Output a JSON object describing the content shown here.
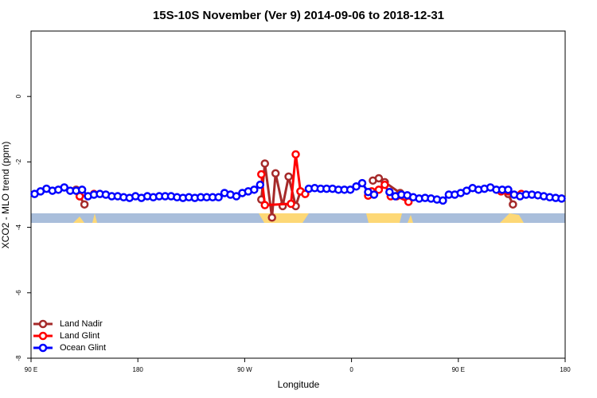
{
  "chart_data": {
    "type": "line",
    "title": "15S-10S November (Ver 9)   2014-09-06 to 2018-12-31",
    "x_label": "Longitude",
    "y_label": "XCO2 - MLO trend (ppm)",
    "xlim": [
      90,
      540
    ],
    "ylim": [
      -8,
      2
    ],
    "xticks": [
      {
        "value": 90,
        "label": "90 E"
      },
      180,
      {
        "value": 270,
        "label": "90 W"
      },
      {
        "value": 360,
        "label": "0"
      },
      {
        "value": 450,
        "label": "90 E"
      },
      {
        "value": 540,
        "label": "180"
      }
    ],
    "yticks": [
      -8,
      -6,
      -4,
      -2,
      0
    ],
    "legend": "bottom-left",
    "series": [
      {
        "name": "Land Nadir",
        "color": "#a52a2a",
        "x": [
          128,
          131,
          135,
          null,
          284,
          287,
          293,
          296,
          302,
          307,
          313,
          317,
          null,
          378,
          383,
          388,
          401,
          null,
          492,
          496
        ],
        "values": [
          -2.85,
          -3.05,
          -3.3,
          null,
          -3.15,
          -2.05,
          -3.7,
          -2.35,
          -3.35,
          -2.45,
          -3.35,
          -2.9,
          null,
          -2.57,
          -2.5,
          -2.62,
          -2.95,
          null,
          -2.98,
          -3.3
        ]
      },
      {
        "name": "Land Glint",
        "color": "#ff0000",
        "x": [
          131,
          143,
          null,
          284,
          287,
          309,
          313,
          317,
          321,
          null,
          374,
          377,
          383,
          388,
          393,
          398,
          408,
          null,
          486,
          492,
          503
        ],
        "values": [
          -3.05,
          -2.98,
          null,
          -2.38,
          -3.32,
          -3.28,
          -1.77,
          -2.9,
          -2.98,
          null,
          -3.03,
          -2.9,
          -2.85,
          -2.7,
          -3.05,
          -3.05,
          -3.22,
          null,
          -2.9,
          -2.9,
          -2.98
        ]
      },
      {
        "name": "Ocean Glint",
        "color": "#0000ff",
        "x": [
          93,
          98,
          103,
          108,
          113,
          118,
          123,
          128,
          133,
          138,
          143,
          148,
          153,
          158,
          163,
          168,
          173,
          178,
          183,
          188,
          193,
          198,
          203,
          208,
          213,
          218,
          223,
          228,
          233,
          238,
          243,
          248,
          253,
          258,
          263,
          268,
          273,
          278,
          283,
          null,
          324,
          329,
          334,
          339,
          344,
          349,
          354,
          359,
          364,
          369,
          374,
          379,
          null,
          392,
          397,
          402,
          407,
          412,
          417,
          422,
          427,
          432,
          437,
          442,
          447,
          452,
          457,
          462,
          467,
          472,
          477,
          482,
          487,
          492,
          497,
          502,
          507,
          512,
          517,
          522,
          527,
          532,
          537
        ],
        "values": [
          -2.98,
          -2.9,
          -2.82,
          -2.88,
          -2.85,
          -2.78,
          -2.88,
          -2.88,
          -2.85,
          -3.05,
          -3.0,
          -2.98,
          -3.0,
          -3.05,
          -3.05,
          -3.08,
          -3.1,
          -3.05,
          -3.1,
          -3.05,
          -3.08,
          -3.05,
          -3.05,
          -3.05,
          -3.08,
          -3.1,
          -3.08,
          -3.1,
          -3.08,
          -3.08,
          -3.08,
          -3.08,
          -2.95,
          -3.0,
          -3.05,
          -2.95,
          -2.9,
          -2.85,
          -2.7,
          null,
          -2.82,
          -2.8,
          -2.82,
          -2.82,
          -2.82,
          -2.85,
          -2.85,
          -2.85,
          -2.75,
          -2.65,
          -2.92,
          -3.0,
          null,
          -2.92,
          -3.05,
          -3.0,
          -3.02,
          -3.08,
          -3.12,
          -3.1,
          -3.12,
          -3.15,
          -3.18,
          -3.0,
          -3.0,
          -2.95,
          -2.88,
          -2.8,
          -2.85,
          -2.82,
          -2.78,
          -2.85,
          -2.85,
          -2.85,
          -3.0,
          -3.05,
          -3.0,
          -3.0,
          -3.02,
          -3.05,
          -3.08,
          -3.1,
          -3.12
        ]
      }
    ]
  }
}
